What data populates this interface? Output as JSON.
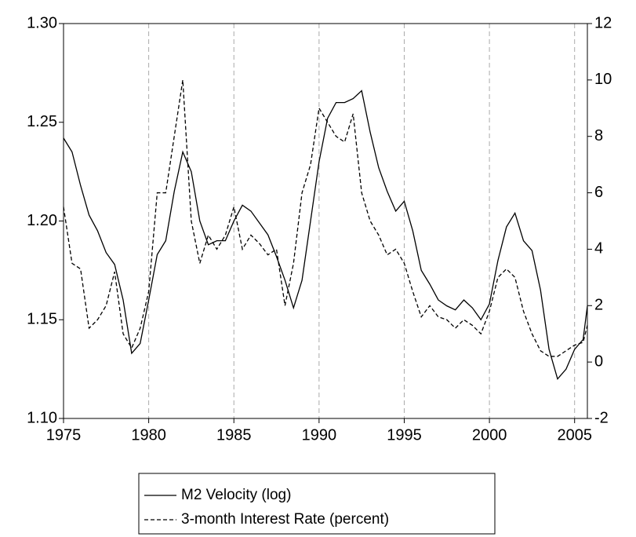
{
  "chart_data": {
    "type": "line",
    "x": [
      1975,
      1975.5,
      1976,
      1976.5,
      1977,
      1977.5,
      1978,
      1978.5,
      1979,
      1979.5,
      1980,
      1980.5,
      1981,
      1981.5,
      1982,
      1982.5,
      1983,
      1983.5,
      1984,
      1984.5,
      1985,
      1985.5,
      1986,
      1986.5,
      1987,
      1987.5,
      1988,
      1988.5,
      1989,
      1989.5,
      1990,
      1990.5,
      1991,
      1991.5,
      1992,
      1992.5,
      1993,
      1993.5,
      1994,
      1994.5,
      1995,
      1995.5,
      1996,
      1996.5,
      1997,
      1997.5,
      1998,
      1998.5,
      1999,
      1999.5,
      2000,
      2000.5,
      2001,
      2001.5,
      2002,
      2002.5,
      2003,
      2003.5,
      2004,
      2004.5,
      2005,
      2005.5,
      2005.75
    ],
    "series": [
      {
        "name": "M2 Velocity (log)",
        "color": "#000000",
        "line_style": "solid",
        "values": [
          1.242,
          1.235,
          1.218,
          1.203,
          1.195,
          1.184,
          1.178,
          1.16,
          1.133,
          1.138,
          1.16,
          1.183,
          1.19,
          1.215,
          1.235,
          1.225,
          1.2,
          1.188,
          1.19,
          1.19,
          1.2,
          1.208,
          1.205,
          1.199,
          1.193,
          1.182,
          1.17,
          1.156,
          1.17,
          1.2,
          1.23,
          1.252,
          1.26,
          1.26,
          1.262,
          1.266,
          1.245,
          1.227,
          1.215,
          1.205,
          1.21,
          1.195,
          1.175,
          1.168,
          1.16,
          1.157,
          1.155,
          1.16,
          1.156,
          1.15,
          1.158,
          1.18,
          1.197,
          1.204,
          1.19,
          1.185,
          1.165,
          1.135,
          1.12,
          1.125,
          1.135,
          1.14,
          1.157
        ]
      },
      {
        "name": "3-month Interest Rate (percent)",
        "color": "#000000",
        "line_style": "dashed",
        "axis": "y2",
        "values": [
          5.5,
          3.5,
          3.3,
          1.2,
          1.5,
          2.0,
          3.2,
          1.0,
          0.5,
          1.2,
          2.5,
          6.0,
          6.0,
          8.0,
          10.0,
          5.0,
          3.5,
          4.5,
          4.0,
          4.5,
          5.5,
          4.0,
          4.5,
          4.2,
          3.8,
          4.0,
          2.0,
          3.5,
          6.0,
          7.0,
          9.0,
          8.5,
          8.0,
          7.8,
          8.8,
          6.0,
          5.0,
          4.5,
          3.8,
          4.0,
          3.5,
          2.5,
          1.6,
          2.0,
          1.6,
          1.5,
          1.2,
          1.5,
          1.3,
          1.0,
          1.8,
          3.0,
          3.3,
          3.0,
          1.8,
          1.0,
          0.4,
          0.2,
          0.2,
          0.4,
          0.6,
          0.7,
          1.3
        ]
      }
    ],
    "xlim": [
      1975,
      2005.75
    ],
    "xticks": [
      1975,
      1980,
      1985,
      1990,
      1995,
      2000,
      2005
    ],
    "ylim": [
      1.1,
      1.3
    ],
    "yticks": [
      {
        "value": 1.1,
        "label": "1.10"
      },
      1.15,
      {
        "value": 1.2,
        "label": "1.20"
      },
      1.25,
      {
        "value": 1.3,
        "label": "1.30"
      }
    ],
    "y2lim": [
      -2,
      12
    ],
    "y2ticks": [
      -2,
      0,
      2,
      4,
      6,
      8,
      10,
      12
    ],
    "grid": "x"
  }
}
